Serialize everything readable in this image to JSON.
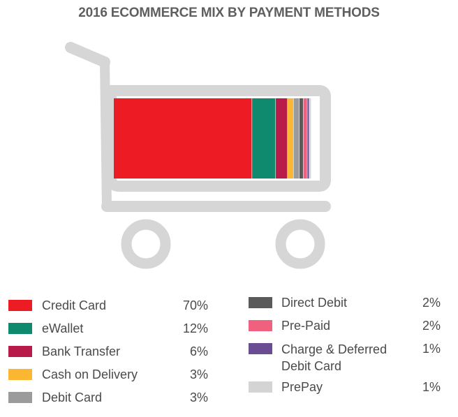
{
  "chart_data": {
    "type": "bar",
    "title": "2016 ECOMMERCE MIX BY PAYMENT METHODS",
    "layout": "single stacked horizontal bar drawn inside a shopping cart",
    "unit": "%",
    "series": [
      {
        "name": "Credit Card",
        "value": 70,
        "label": "70%",
        "color": "#ed1c24"
      },
      {
        "name": "eWallet",
        "value": 12,
        "label": "12%",
        "color": "#0f8a6f"
      },
      {
        "name": "Bank Transfer",
        "value": 6,
        "label": "6%",
        "color": "#b81a4a"
      },
      {
        "name": "Cash on Delivery",
        "value": 3,
        "label": "3%",
        "color": "#fbb731"
      },
      {
        "name": "Debit Card",
        "value": 3,
        "label": "3%",
        "color": "#9b9b9b"
      },
      {
        "name": "Direct Debit",
        "value": 2,
        "label": "2%",
        "color": "#5a5a5a"
      },
      {
        "name": "Pre-Paid",
        "value": 2,
        "label": "2%",
        "color": "#f0607f"
      },
      {
        "name": "Charge & Deferred Debit Card",
        "value": 1,
        "label": "1%",
        "color": "#6a4c93",
        "label_lines": [
          "Charge & Deferred",
          "Debit Card"
        ]
      },
      {
        "name": "PrePay",
        "value": 1,
        "label": "1%",
        "color": "#d4d4d4"
      }
    ],
    "legend": "bottom, two columns",
    "cart_color": "#d6d6d6"
  }
}
